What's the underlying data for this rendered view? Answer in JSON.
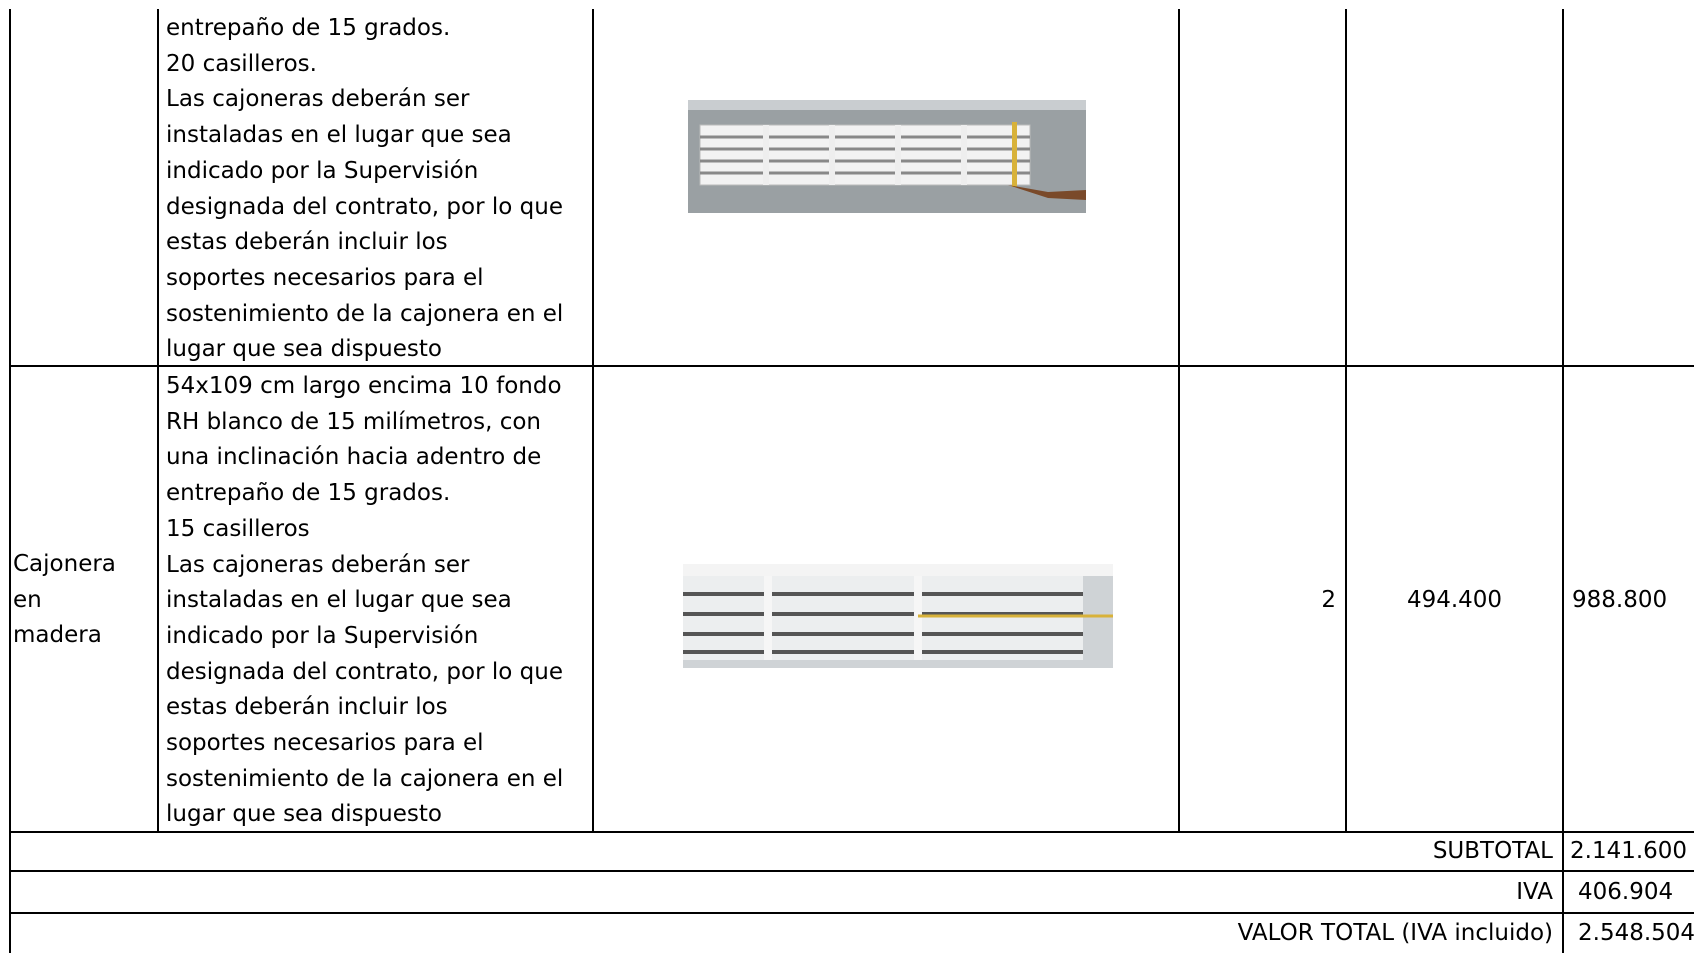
{
  "table": {
    "rows": [
      {
        "description_lines": [
          "entrepaño de 15 grados.",
          "20 casilleros.",
          "Las cajoneras deberán ser",
          "instaladas en el lugar que sea",
          "indicado por la Supervisión",
          "designada del contrato, por lo que",
          "estas deberán incluir los",
          "soportes necesarios para el",
          "sostenimiento de la cajonera en el",
          "lugar que sea dispuesto"
        ]
      },
      {
        "name_lines": [
          "Cajonera",
          "en",
          "madera"
        ],
        "description_lines": [
          "54x109 cm largo encima 10 fondo",
          "RH blanco de 15 milímetros, con",
          "una inclinación hacia adentro de",
          "entrepaño de 15 grados.",
          "15 casilleros",
          "Las cajoneras deberán ser",
          "instaladas en el lugar que sea",
          "indicado por la Supervisión",
          "designada del contrato, por lo que",
          "estas deberán incluir los",
          "soportes necesarios para el",
          "sostenimiento de la cajonera en el",
          "lugar que sea dispuesto"
        ],
        "quantity": "2",
        "unit_price": "494.400",
        "total": "988.800"
      }
    ],
    "summary": [
      {
        "label": "SUBTOTAL",
        "value": "2.141.600"
      },
      {
        "label": "IVA",
        "value": "406.904"
      },
      {
        "label": "VALOR TOTAL (IVA incluido)",
        "value": "2.548.504"
      }
    ]
  }
}
